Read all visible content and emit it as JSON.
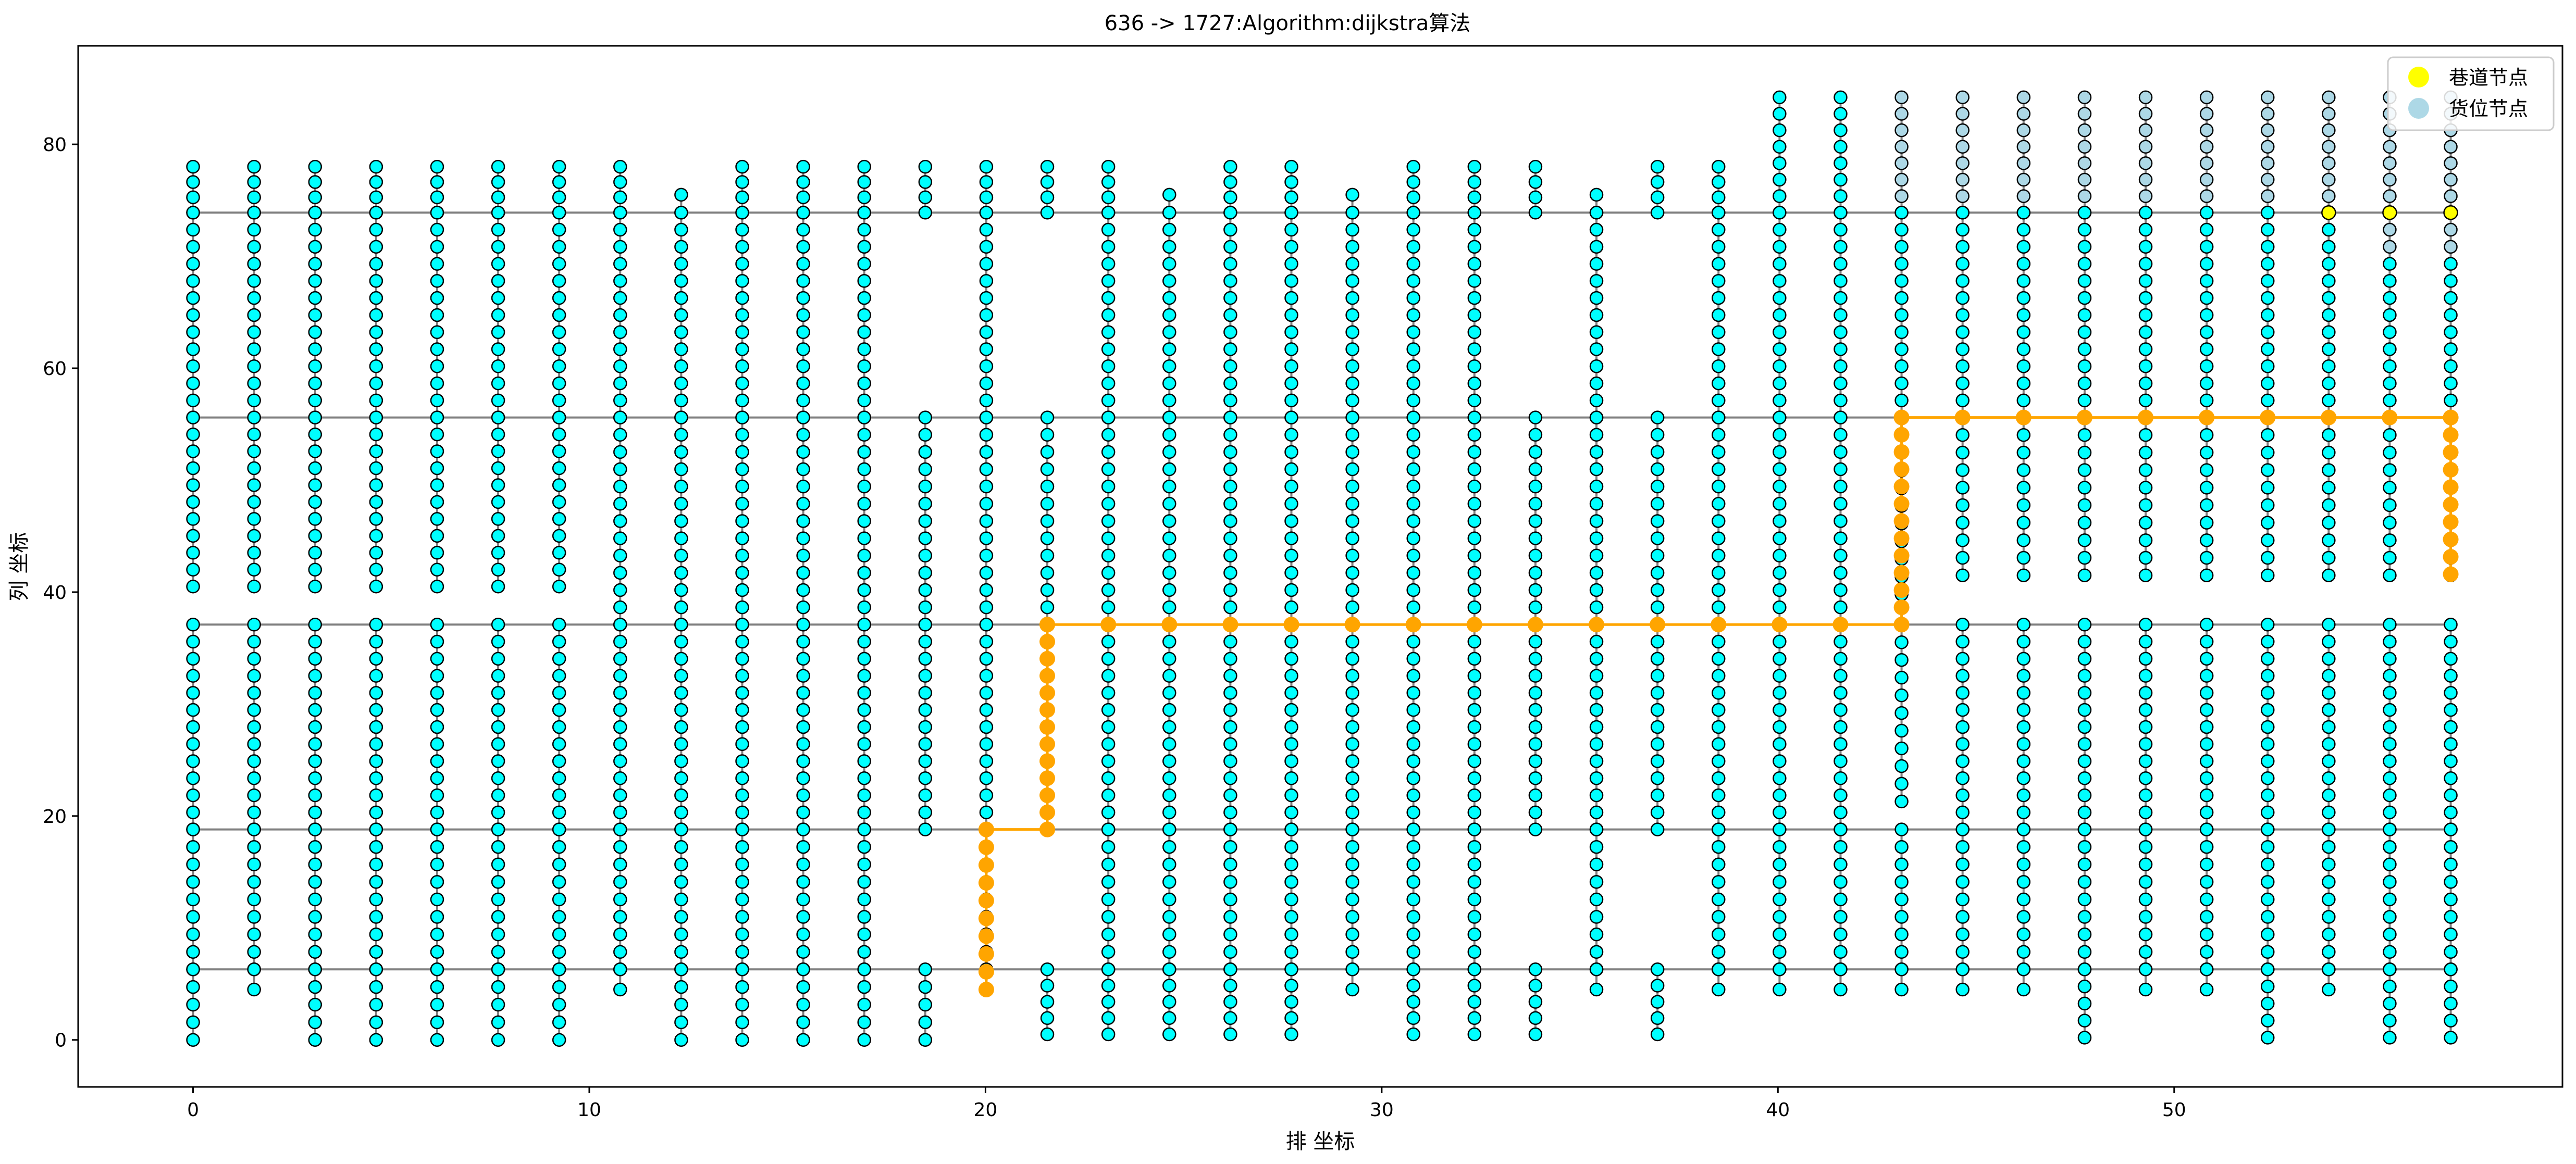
{
  "chart_data": {
    "type": "scatter",
    "title": "636 -> 1727:Algorithm:dijkstra算法",
    "xlabel": "排 坐标",
    "ylabel": "列 坐标",
    "xlim": [
      -2.9,
      59.8
    ],
    "ylim": [
      -4.2,
      88.8
    ],
    "xticks": [
      0,
      10,
      20,
      30,
      40,
      50
    ],
    "yticks": [
      0,
      20,
      40,
      60,
      80
    ],
    "legend": {
      "placement": "top-right",
      "entries": [
        {
          "label": "巷道节点",
          "color": "#ffff00"
        },
        {
          "label": "货位节点",
          "color": "#add8e6"
        }
      ]
    },
    "colors": {
      "node_fill": "#00ffff",
      "node_edge": "#000000",
      "aisle_line": "#808080",
      "path": "#ffa500",
      "aisle_node": "#ffff00",
      "storage_node": "#add8e6"
    },
    "rows_x": [
      0,
      1.54,
      3.08,
      4.62,
      6.16,
      7.7,
      9.24,
      10.78,
      12.32,
      13.86,
      15.4,
      16.94,
      18.48,
      20.02,
      21.56,
      23.1,
      24.64,
      26.18,
      27.72,
      29.26,
      30.8,
      32.34,
      33.88,
      35.42,
      36.96,
      38.5,
      40.04,
      41.58,
      43.12,
      44.66,
      46.2,
      47.74,
      49.28,
      50.82,
      52.36,
      53.9,
      55.44,
      56.98
    ],
    "aisle_y": [
      6.3,
      18.8,
      37.1,
      55.6,
      73.9
    ],
    "column_segments": [
      [
        [
          0,
          6.3
        ],
        [
          6.3,
          18.8
        ],
        [
          18.8,
          37.1
        ],
        [
          40.5,
          55.6
        ],
        [
          55.6,
          73.9
        ],
        [
          73.9,
          78
        ]
      ],
      [
        [
          4.5,
          6.3
        ],
        [
          6.3,
          18.8
        ],
        [
          18.8,
          37.1
        ],
        [
          40.5,
          55.6
        ],
        [
          55.6,
          73.9
        ],
        [
          73.9,
          78
        ]
      ],
      [
        [
          0,
          6.3
        ],
        [
          6.3,
          18.8
        ],
        [
          18.8,
          37.1
        ],
        [
          40.5,
          55.6
        ],
        [
          55.6,
          73.9
        ],
        [
          73.9,
          78
        ]
      ],
      [
        [
          0,
          6.3
        ],
        [
          6.3,
          18.8
        ],
        [
          18.8,
          37.1
        ],
        [
          40.5,
          55.6
        ],
        [
          55.6,
          73.9
        ],
        [
          73.9,
          78
        ]
      ],
      [
        [
          0,
          6.3
        ],
        [
          6.3,
          18.8
        ],
        [
          18.8,
          37.1
        ],
        [
          40.5,
          55.6
        ],
        [
          55.6,
          73.9
        ],
        [
          73.9,
          78
        ]
      ],
      [
        [
          0,
          6.3
        ],
        [
          6.3,
          18.8
        ],
        [
          18.8,
          37.1
        ],
        [
          40.5,
          55.6
        ],
        [
          55.6,
          73.9
        ],
        [
          73.9,
          78
        ]
      ],
      [
        [
          0,
          6.3
        ],
        [
          6.3,
          18.8
        ],
        [
          18.8,
          37.1
        ],
        [
          40.5,
          55.6
        ],
        [
          55.6,
          73.9
        ],
        [
          73.9,
          78
        ]
      ],
      [
        [
          4.5,
          6.3
        ],
        [
          6.3,
          18.8
        ],
        [
          18.8,
          37.1
        ],
        [
          37.1,
          55.6
        ],
        [
          55.6,
          73.9
        ],
        [
          73.9,
          78
        ]
      ],
      [
        [
          0,
          6.3
        ],
        [
          6.3,
          18.8
        ],
        [
          18.8,
          37.1
        ],
        [
          37.1,
          55.6
        ],
        [
          55.6,
          73.9
        ],
        [
          73.9,
          75.5
        ]
      ],
      [
        [
          0,
          6.3
        ],
        [
          6.3,
          18.8
        ],
        [
          18.8,
          37.1
        ],
        [
          37.1,
          55.6
        ],
        [
          55.6,
          73.9
        ],
        [
          73.9,
          78
        ]
      ],
      [
        [
          0,
          6.3
        ],
        [
          6.3,
          18.8
        ],
        [
          18.8,
          37.1
        ],
        [
          37.1,
          55.6
        ],
        [
          55.6,
          73.9
        ],
        [
          73.9,
          78
        ]
      ],
      [
        [
          0,
          6.3
        ],
        [
          6.3,
          18.8
        ],
        [
          18.8,
          37.1
        ],
        [
          37.1,
          55.6
        ],
        [
          55.6,
          73.9
        ],
        [
          73.9,
          78
        ]
      ],
      [
        [
          0,
          6.3
        ],
        [
          18.8,
          37.1
        ],
        [
          37.1,
          55.6
        ],
        [
          73.9,
          78
        ]
      ],
      [
        [
          4.5,
          6.3
        ],
        [
          6.3,
          18.8
        ],
        [
          18.8,
          37.1
        ],
        [
          37.1,
          55.6
        ],
        [
          55.6,
          73.9
        ],
        [
          73.9,
          78
        ]
      ],
      [
        [
          0.5,
          6.3
        ],
        [
          18.8,
          37.1
        ],
        [
          37.1,
          55.6
        ],
        [
          73.9,
          78
        ]
      ],
      [
        [
          0.5,
          6.3
        ],
        [
          6.3,
          18.8
        ],
        [
          18.8,
          37.1
        ],
        [
          37.1,
          55.6
        ],
        [
          55.6,
          73.9
        ],
        [
          73.9,
          78
        ]
      ],
      [
        [
          0.5,
          6.3
        ],
        [
          6.3,
          18.8
        ],
        [
          18.8,
          37.1
        ],
        [
          37.1,
          55.6
        ],
        [
          55.6,
          73.9
        ],
        [
          73.9,
          75.5
        ]
      ],
      [
        [
          0.5,
          6.3
        ],
        [
          6.3,
          18.8
        ],
        [
          18.8,
          37.1
        ],
        [
          37.1,
          55.6
        ],
        [
          55.6,
          73.9
        ],
        [
          73.9,
          78
        ]
      ],
      [
        [
          0.5,
          6.3
        ],
        [
          6.3,
          18.8
        ],
        [
          18.8,
          37.1
        ],
        [
          37.1,
          55.6
        ],
        [
          55.6,
          73.9
        ],
        [
          73.9,
          78
        ]
      ],
      [
        [
          4.5,
          6.3
        ],
        [
          6.3,
          18.8
        ],
        [
          18.8,
          37.1
        ],
        [
          37.1,
          55.6
        ],
        [
          55.6,
          73.9
        ],
        [
          73.9,
          75.5
        ]
      ],
      [
        [
          0.5,
          6.3
        ],
        [
          6.3,
          18.8
        ],
        [
          18.8,
          37.1
        ],
        [
          37.1,
          55.6
        ],
        [
          55.6,
          73.9
        ],
        [
          73.9,
          78
        ]
      ],
      [
        [
          0.5,
          6.3
        ],
        [
          6.3,
          18.8
        ],
        [
          18.8,
          37.1
        ],
        [
          37.1,
          55.6
        ],
        [
          55.6,
          73.9
        ],
        [
          73.9,
          78
        ]
      ],
      [
        [
          0.5,
          6.3
        ],
        [
          18.8,
          37.1
        ],
        [
          37.1,
          55.6
        ],
        [
          73.9,
          78
        ]
      ],
      [
        [
          4.5,
          6.3
        ],
        [
          6.3,
          18.8
        ],
        [
          18.8,
          37.1
        ],
        [
          37.1,
          55.6
        ],
        [
          55.6,
          73.9
        ],
        [
          73.9,
          75.5
        ]
      ],
      [
        [
          0.5,
          6.3
        ],
        [
          18.8,
          37.1
        ],
        [
          37.1,
          55.6
        ],
        [
          73.9,
          78
        ]
      ],
      [
        [
          4.5,
          6.3
        ],
        [
          6.3,
          18.8
        ],
        [
          18.8,
          37.1
        ],
        [
          37.1,
          55.6
        ],
        [
          55.6,
          73.9
        ],
        [
          73.9,
          78
        ]
      ],
      [
        [
          4.5,
          6.3
        ],
        [
          6.3,
          18.8
        ],
        [
          18.8,
          37.1
        ],
        [
          37.1,
          55.6
        ],
        [
          55.6,
          73.9
        ],
        [
          73.9,
          84.2
        ]
      ],
      [
        [
          4.5,
          6.3
        ],
        [
          6.3,
          18.8
        ],
        [
          18.8,
          37.1
        ],
        [
          37.1,
          55.6
        ],
        [
          55.6,
          73.9
        ],
        [
          73.9,
          84.2
        ]
      ],
      [
        [
          4.5,
          6.3
        ],
        [
          6.3,
          18.8
        ],
        [
          21.3,
          37.1
        ],
        [
          39.8,
          55.6
        ],
        [
          55.6,
          73.9
        ],
        [
          73.9,
          84.2
        ]
      ],
      [
        [
          4.5,
          6.3
        ],
        [
          6.3,
          18.8
        ],
        [
          18.8,
          37.1
        ],
        [
          41.5,
          55.6
        ],
        [
          55.6,
          73.9
        ],
        [
          73.9,
          84.2
        ]
      ],
      [
        [
          4.5,
          6.3
        ],
        [
          6.3,
          18.8
        ],
        [
          18.8,
          37.1
        ],
        [
          41.5,
          55.6
        ],
        [
          55.6,
          73.9
        ],
        [
          73.9,
          84.2
        ]
      ],
      [
        [
          0.2,
          6.3
        ],
        [
          6.3,
          18.8
        ],
        [
          18.8,
          37.1
        ],
        [
          41.5,
          55.6
        ],
        [
          55.6,
          73.9
        ],
        [
          73.9,
          84.2
        ]
      ],
      [
        [
          4.5,
          6.3
        ],
        [
          6.3,
          18.8
        ],
        [
          18.8,
          37.1
        ],
        [
          41.5,
          55.6
        ],
        [
          55.6,
          73.9
        ],
        [
          73.9,
          84.2
        ]
      ],
      [
        [
          4.5,
          6.3
        ],
        [
          6.3,
          18.8
        ],
        [
          18.8,
          37.1
        ],
        [
          41.5,
          55.6
        ],
        [
          55.6,
          73.9
        ],
        [
          73.9,
          84.2
        ]
      ],
      [
        [
          0.2,
          6.3
        ],
        [
          6.3,
          18.8
        ],
        [
          18.8,
          37.1
        ],
        [
          41.5,
          55.6
        ],
        [
          55.6,
          73.9
        ],
        [
          73.9,
          84.2
        ]
      ],
      [
        [
          4.5,
          6.3
        ],
        [
          6.3,
          18.8
        ],
        [
          18.8,
          37.1
        ],
        [
          41.5,
          55.6
        ],
        [
          55.6,
          73.9
        ],
        [
          73.9,
          84.2
        ]
      ],
      [
        [
          0.2,
          6.3
        ],
        [
          6.3,
          18.8
        ],
        [
          18.8,
          37.1
        ],
        [
          41.5,
          55.6
        ],
        [
          55.6,
          73.9
        ],
        [
          73.9,
          84.2
        ]
      ],
      [
        [
          0.2,
          6.3
        ],
        [
          6.3,
          18.8
        ],
        [
          18.8,
          37.1
        ],
        [
          41.5,
          55.6
        ],
        [
          55.6,
          73.9
        ],
        [
          73.9,
          84.2
        ]
      ]
    ],
    "storage_node_columns": [
      28,
      29,
      30,
      31,
      32,
      33,
      34,
      35,
      36,
      37
    ],
    "path": [
      [
        20.02,
        4.5
      ],
      [
        20.02,
        18.8
      ],
      [
        21.56,
        18.8
      ],
      [
        21.56,
        37.1
      ],
      [
        43.12,
        37.1
      ],
      [
        43.12,
        55.6
      ],
      [
        56.98,
        55.6
      ],
      [
        56.98,
        41.6
      ]
    ],
    "highlight_nodes": [
      [
        53.9,
        73.9
      ],
      [
        55.44,
        73.9
      ],
      [
        56.98,
        73.9
      ]
    ]
  }
}
